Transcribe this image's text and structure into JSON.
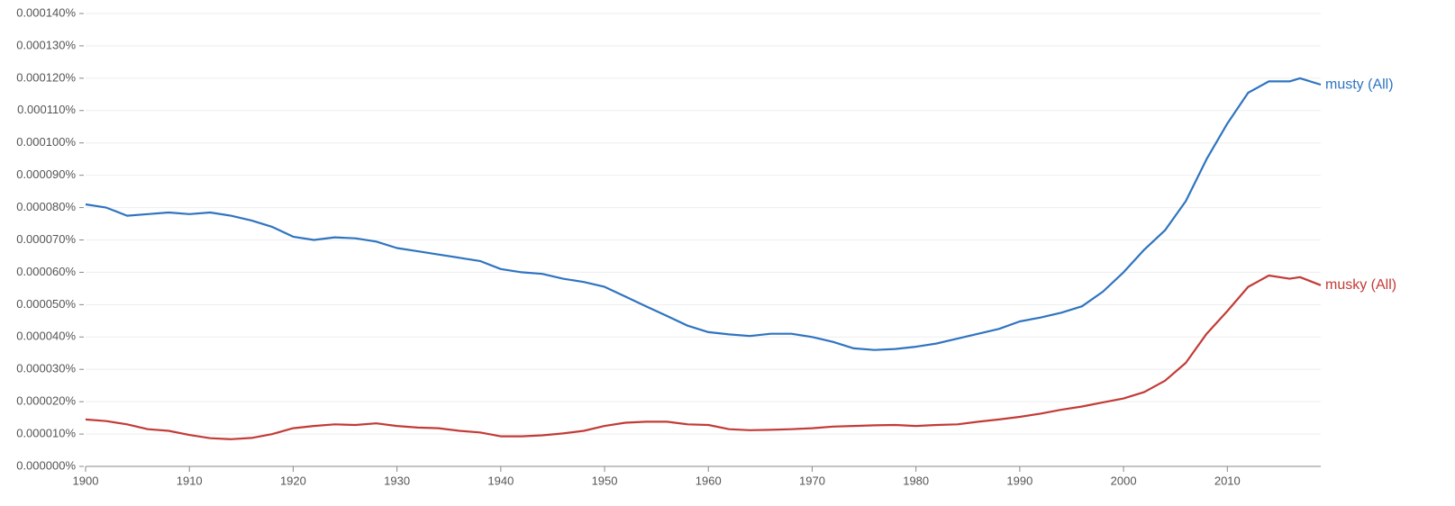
{
  "chart_data": {
    "type": "line",
    "x": [
      1900,
      1902,
      1904,
      1906,
      1908,
      1910,
      1912,
      1914,
      1916,
      1918,
      1920,
      1922,
      1924,
      1926,
      1928,
      1930,
      1932,
      1934,
      1936,
      1938,
      1940,
      1942,
      1944,
      1946,
      1948,
      1950,
      1952,
      1954,
      1956,
      1958,
      1960,
      1962,
      1964,
      1966,
      1968,
      1970,
      1972,
      1974,
      1976,
      1978,
      1980,
      1982,
      1984,
      1986,
      1988,
      1990,
      1992,
      1994,
      1996,
      1998,
      2000,
      2002,
      2004,
      2006,
      2008,
      2010,
      2012,
      2014,
      2016,
      2017,
      2019
    ],
    "series": [
      {
        "name": "musty (All)",
        "color": "#2f74c0",
        "values": [
          8.1e-05,
          8e-05,
          7.75e-05,
          7.8e-05,
          7.85e-05,
          7.8e-05,
          7.85e-05,
          7.75e-05,
          7.6e-05,
          7.4e-05,
          7.1e-05,
          7e-05,
          7.08e-05,
          7.05e-05,
          6.95e-05,
          6.75e-05,
          6.65e-05,
          6.55e-05,
          6.45e-05,
          6.35e-05,
          6.1e-05,
          6e-05,
          5.95e-05,
          5.8e-05,
          5.7e-05,
          5.55e-05,
          5.25e-05,
          4.95e-05,
          4.65e-05,
          4.35e-05,
          4.15e-05,
          4.08e-05,
          4.03e-05,
          4.1e-05,
          4.1e-05,
          4e-05,
          3.85e-05,
          3.65e-05,
          3.6e-05,
          3.63e-05,
          3.7e-05,
          3.8e-05,
          3.95e-05,
          4.1e-05,
          4.25e-05,
          4.48e-05,
          4.6e-05,
          4.75e-05,
          4.95e-05,
          5.4e-05,
          6e-05,
          6.7e-05,
          7.3e-05,
          8.2e-05,
          9.5e-05,
          0.000106,
          0.0001155,
          0.000119,
          0.000119,
          0.00012,
          0.000118
        ]
      },
      {
        "name": "musky (All)",
        "color": "#c23b36",
        "values": [
          1.45e-05,
          1.4e-05,
          1.3e-05,
          1.15e-05,
          1.1e-05,
          9.7e-06,
          8.7e-06,
          8.4e-06,
          8.8e-06,
          1e-05,
          1.18e-05,
          1.25e-05,
          1.3e-05,
          1.28e-05,
          1.33e-05,
          1.25e-05,
          1.2e-05,
          1.18e-05,
          1.1e-05,
          1.05e-05,
          9.3e-06,
          9.3e-06,
          9.6e-06,
          1.02e-05,
          1.1e-05,
          1.25e-05,
          1.35e-05,
          1.38e-05,
          1.38e-05,
          1.3e-05,
          1.28e-05,
          1.15e-05,
          1.12e-05,
          1.13e-05,
          1.15e-05,
          1.18e-05,
          1.23e-05,
          1.25e-05,
          1.27e-05,
          1.28e-05,
          1.25e-05,
          1.28e-05,
          1.3e-05,
          1.38e-05,
          1.45e-05,
          1.53e-05,
          1.63e-05,
          1.75e-05,
          1.85e-05,
          1.98e-05,
          2.1e-05,
          2.3e-05,
          2.65e-05,
          3.2e-05,
          4.1e-05,
          4.8e-05,
          5.55e-05,
          5.9e-05,
          5.8e-05,
          5.85e-05,
          5.6e-05
        ]
      }
    ],
    "xlim": [
      1900,
      2019
    ],
    "ylim": [
      0,
      0.00014
    ],
    "xticks": [
      1900,
      1910,
      1920,
      1930,
      1940,
      1950,
      1960,
      1970,
      1980,
      1990,
      2000,
      2010
    ],
    "yticks": [
      {
        "value": 0,
        "label": "0.000000%"
      },
      {
        "value": 1e-05,
        "label": "0.000010%"
      },
      {
        "value": 2e-05,
        "label": "0.000020%"
      },
      {
        "value": 3e-05,
        "label": "0.000030%"
      },
      {
        "value": 4e-05,
        "label": "0.000040%"
      },
      {
        "value": 5e-05,
        "label": "0.000050%"
      },
      {
        "value": 6e-05,
        "label": "0.000060%"
      },
      {
        "value": 7e-05,
        "label": "0.000070%"
      },
      {
        "value": 8e-05,
        "label": "0.000080%"
      },
      {
        "value": 9e-05,
        "label": "0.000090%"
      },
      {
        "value": 0.0001,
        "label": "0.000100%"
      },
      {
        "value": 0.00011,
        "label": "0.000110%"
      },
      {
        "value": 0.00012,
        "label": "0.000120%"
      },
      {
        "value": 0.00013,
        "label": "0.000130%"
      },
      {
        "value": 0.00014,
        "label": "0.000140%"
      }
    ],
    "grid": true
  }
}
